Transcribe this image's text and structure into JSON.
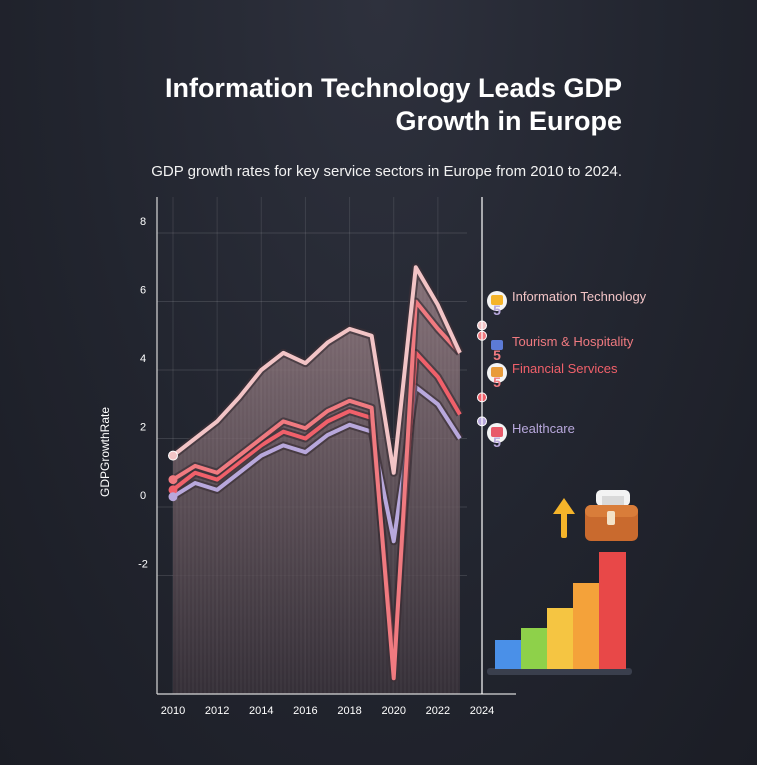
{
  "header": {
    "title": "Information Technology Leads GDP Growth in Europe",
    "subtitle": "GDP growth rates for key service sectors in Europe from 2010 to 2024."
  },
  "chart_data": {
    "type": "area",
    "title": "Information Technology Leads GDP Growth in Europe",
    "subtitle": "GDP growth rates for key service sectors in Europe from 2010 to 2024.",
    "xlabel": "",
    "ylabel": "GDPGrowthRate",
    "x": [
      2010,
      2011,
      2012,
      2013,
      2014,
      2015,
      2016,
      2017,
      2018,
      2019,
      2020,
      2021,
      2022,
      2023,
      2024
    ],
    "x_ticks": [
      "2010",
      "2012",
      "2014",
      "2016",
      "2018",
      "2020",
      "2022",
      "2024"
    ],
    "y_ticks": [
      "8",
      "6",
      "4",
      "2",
      "0",
      "-2"
    ],
    "ylim": [
      -5.5,
      9.2
    ],
    "grid": true,
    "series": [
      {
        "name": "Information Technology",
        "color": "#f2c4c6",
        "values": [
          1.5,
          2.0,
          2.5,
          3.2,
          4.0,
          4.5,
          4.2,
          4.8,
          5.2,
          5.0,
          1.0,
          7.0,
          5.9,
          4.5,
          5.3
        ]
      },
      {
        "name": "Tourism & Hospitality",
        "color": "#f07a80",
        "values": [
          0.8,
          1.2,
          1.0,
          1.5,
          2.0,
          2.5,
          2.3,
          2.8,
          3.1,
          2.9,
          -5.0,
          6.0,
          5.2,
          4.5,
          5.0
        ]
      },
      {
        "name": "Financial Services",
        "color": "#f0606a",
        "values": [
          0.5,
          1.0,
          0.8,
          1.3,
          1.8,
          2.2,
          2.0,
          2.5,
          2.8,
          2.6,
          -4.5,
          4.5,
          3.8,
          2.7,
          3.2
        ]
      },
      {
        "name": "Healthcare",
        "color": "#b8a8dc",
        "values": [
          0.3,
          0.7,
          0.5,
          1.0,
          1.5,
          1.8,
          1.6,
          2.1,
          2.4,
          2.2,
          -1.0,
          3.5,
          3.0,
          2.0,
          2.5
        ]
      }
    ],
    "legend_placement": "right",
    "legend_icons": [
      "laptop-icon",
      "hotel-icon",
      "bank-icon",
      "medical-icon"
    ],
    "legend_rank_digit": "5",
    "decoration": {
      "name": "growth-bar-chart-illustration",
      "bar_colors": [
        "#4a90e8",
        "#8ed14a",
        "#f5c542",
        "#f4a23a",
        "#f06a3c",
        "#e84848"
      ]
    }
  }
}
